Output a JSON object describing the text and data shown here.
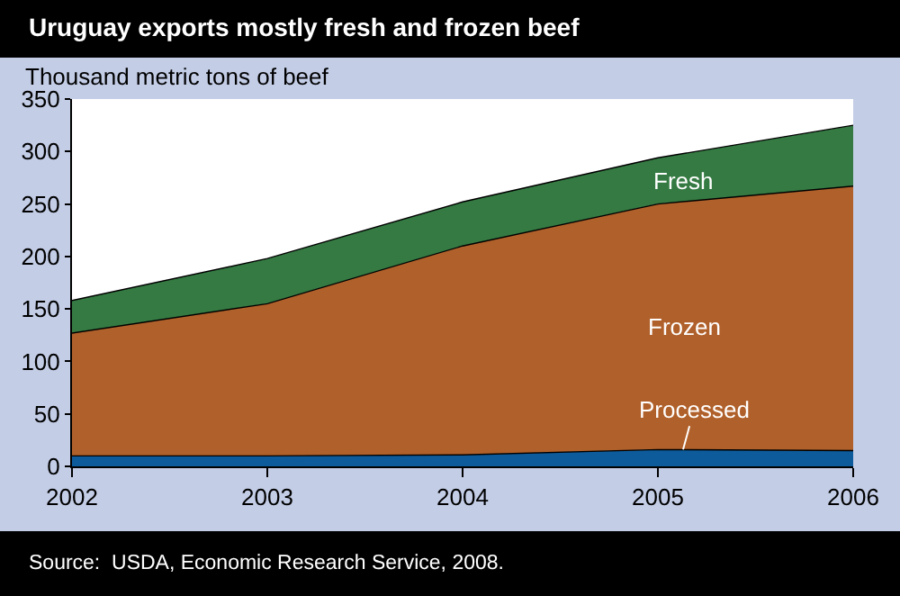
{
  "chart_data": {
    "type": "area",
    "stacked": true,
    "title": "Uruguay exports mostly fresh and frozen beef",
    "ylabel": "Thousand metric tons of beef",
    "x": [
      2002,
      2003,
      2004,
      2005,
      2006
    ],
    "series": [
      {
        "name": "Processed",
        "color": "#0d5b9b",
        "values": [
          10,
          10,
          11,
          16,
          15
        ]
      },
      {
        "name": "Frozen",
        "color": "#b0602a",
        "values": [
          117,
          145,
          199,
          234,
          252
        ]
      },
      {
        "name": "Fresh",
        "color": "#347a42",
        "values": [
          31,
          43,
          42,
          44,
          58
        ]
      }
    ],
    "xlim": [
      2002,
      2006
    ],
    "xticks": [
      2002,
      2003,
      2004,
      2005,
      2006
    ],
    "ylim": [
      0,
      350
    ],
    "yticks": [
      0,
      50,
      100,
      150,
      200,
      250,
      300,
      350
    ],
    "legend": false,
    "annotations": [
      "Source:  USDA, Economic Research Service, 2008."
    ]
  }
}
